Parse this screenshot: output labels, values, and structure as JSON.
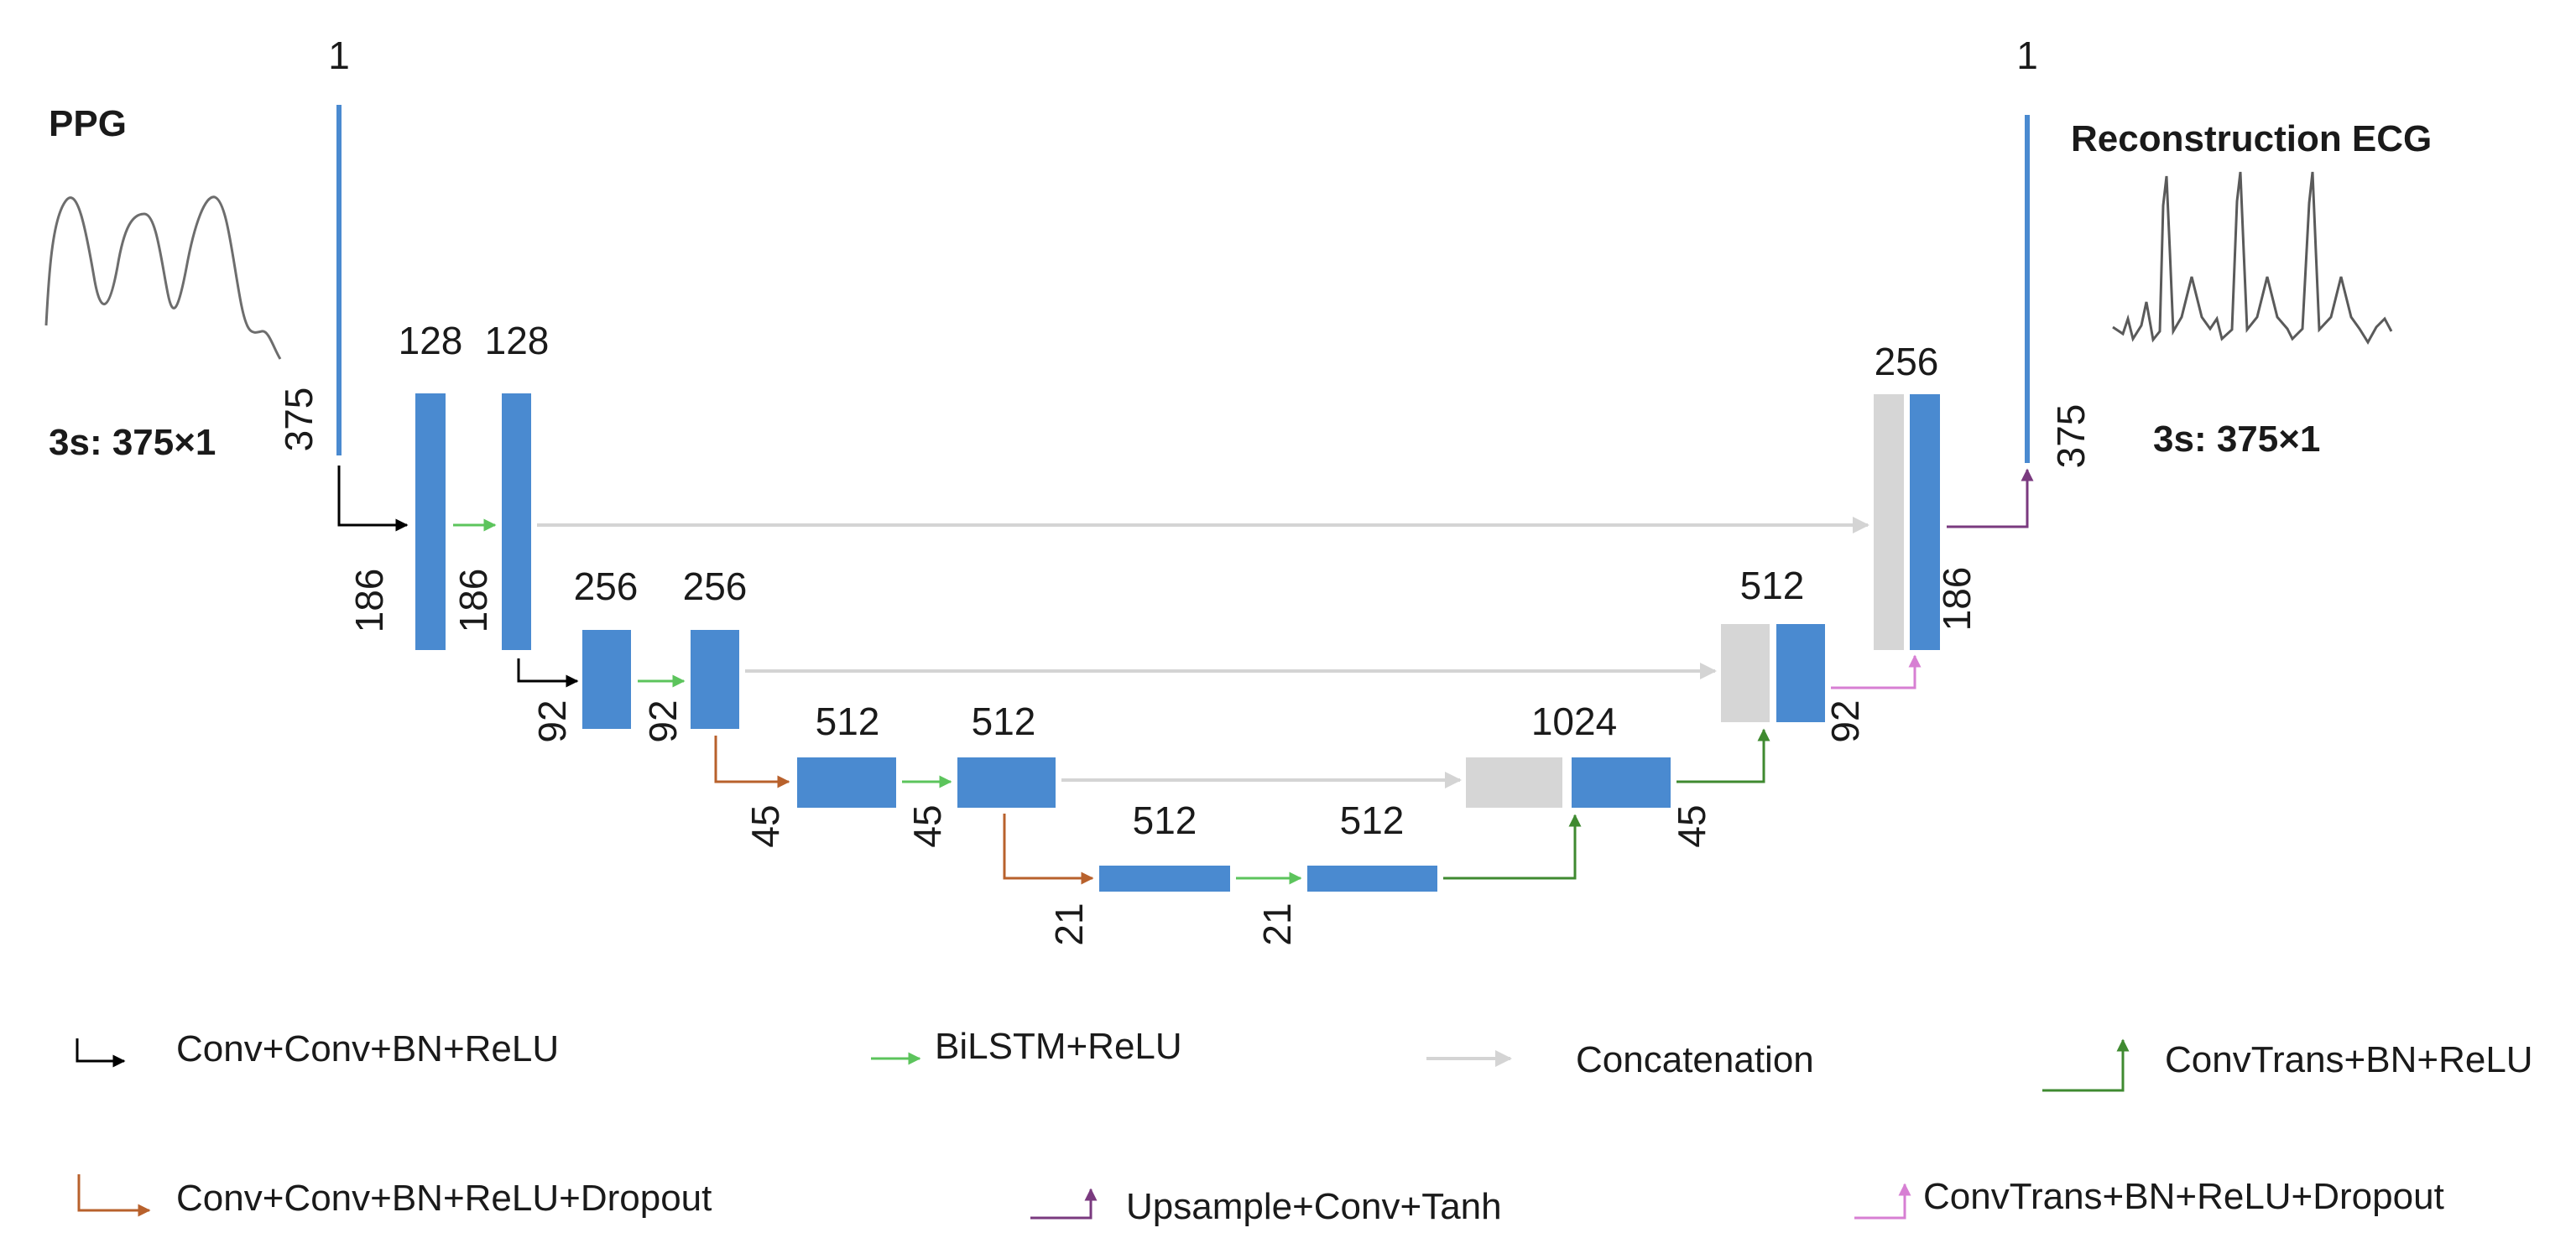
{
  "input": {
    "title": "PPG",
    "shape": "3s: 375×1",
    "channels": "1",
    "length": "375"
  },
  "output": {
    "title": "Reconstruction ECG",
    "shape": "3s: 375×1",
    "channels": "1",
    "length": "375"
  },
  "blocks": {
    "enc1_a": {
      "channels": "128",
      "length": "186"
    },
    "enc1_b": {
      "channels": "128",
      "length": "186"
    },
    "enc2_a": {
      "channels": "256",
      "length": "92"
    },
    "enc2_b": {
      "channels": "256",
      "length": "92"
    },
    "enc3_a": {
      "channels": "512",
      "length": "45"
    },
    "enc3_b": {
      "channels": "512",
      "length": "45"
    },
    "bott_a": {
      "channels": "512",
      "length": "21"
    },
    "bott_b": {
      "channels": "512",
      "length": "21"
    },
    "dec3": {
      "channels": "1024",
      "length": "45"
    },
    "dec2": {
      "channels": "512",
      "length": "92"
    },
    "dec1": {
      "channels": "256",
      "length": "186"
    }
  },
  "legend": {
    "conv": "Conv+Conv+BN+ReLU",
    "bilstm": "BiLSTM+ReLU",
    "concat": "Concatenation",
    "convtrans": "ConvTrans+BN+ReLU",
    "conv_dropout": "Conv+Conv+BN+ReLU+Dropout",
    "upsample": "Upsample+Conv+Tanh",
    "convtrans_dropout": "ConvTrans+BN+ReLU+Dropout"
  },
  "colors": {
    "block": "#4a8ad0",
    "concat_block": "#d6d6d6",
    "conv_arrow": "#000000",
    "conv_dropout_arrow": "#b8612c",
    "bilstm_arrow": "#5cc45c",
    "concat_arrow": "#d4d4d4",
    "convtrans_arrow": "#3f8a30",
    "convtrans_dropout_arrow": "#d77fd3",
    "upsample_arrow": "#7a3a7f"
  }
}
